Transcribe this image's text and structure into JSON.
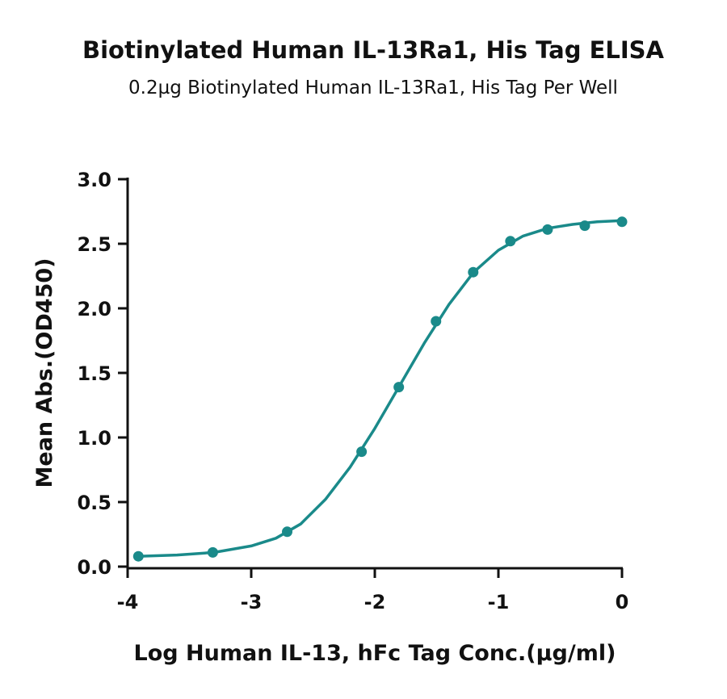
{
  "chart_data": {
    "type": "scatter",
    "title": "Biotinylated Human IL-13Ra1, His Tag ELISA",
    "subtitle": "0.2µg Biotinylated Human IL-13Ra1, His Tag Per Well",
    "x_label": "Log Human IL-13, hFc Tag Conc.(µg/ml)",
    "y_label": "Mean Abs.(OD450)",
    "color": "#1a8a8a",
    "x": [
      -3.913,
      -3.311,
      -2.709,
      -2.107,
      -1.806,
      -1.505,
      -1.204,
      -0.903,
      -0.602,
      -0.301,
      0
    ],
    "values": [
      0.08,
      0.11,
      0.27,
      0.89,
      1.39,
      1.9,
      2.28,
      2.52,
      2.61,
      2.64,
      2.67
    ],
    "curve": {
      "x": [
        -3.92,
        -3.6,
        -3.3,
        -3.0,
        -2.8,
        -2.6,
        -2.4,
        -2.2,
        -2.0,
        -1.8,
        -1.6,
        -1.4,
        -1.2,
        -1.0,
        -0.8,
        -0.6,
        -0.4,
        -0.2,
        0
      ],
      "values": [
        0.08,
        0.09,
        0.11,
        0.16,
        0.22,
        0.33,
        0.52,
        0.77,
        1.07,
        1.4,
        1.73,
        2.03,
        2.28,
        2.45,
        2.56,
        2.62,
        2.65,
        2.67,
        2.68
      ]
    },
    "xlim": [
      -4,
      0
    ],
    "xticks": [
      -4,
      -3,
      -2,
      -1,
      0
    ],
    "ylim": [
      0,
      3
    ],
    "yticks": [
      {
        "value": 0,
        "label": "0.0"
      },
      0.5,
      {
        "value": 1,
        "label": "1.0"
      },
      1.5,
      {
        "value": 2,
        "label": "2.0"
      },
      2.5,
      {
        "value": 3,
        "label": "3.0"
      }
    ]
  }
}
